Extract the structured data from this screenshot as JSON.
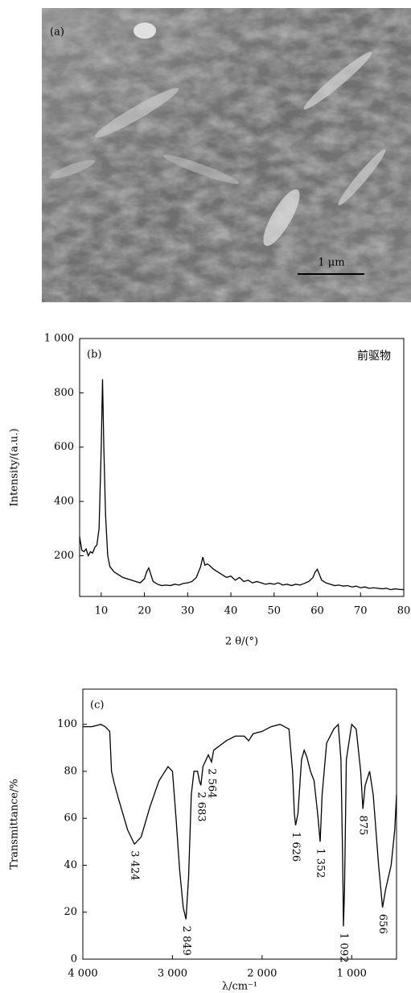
{
  "panel_a": {
    "label": "(a)",
    "scale_bar": "1 μm"
  },
  "chart_data": [
    {
      "type": "line",
      "panel_label": "(b)",
      "annotation_text": "前驱物",
      "xlabel": "2 θ/(°)",
      "ylabel": "Intensity/(a.u.)",
      "xlim": [
        5,
        80
      ],
      "ylim": [
        50,
        1000
      ],
      "xticks": [
        10,
        20,
        30,
        40,
        50,
        60,
        70,
        80
      ],
      "yticks": [
        200,
        400,
        600,
        800,
        {
          "value": 1000,
          "label": "1 000"
        }
      ],
      "color": "#000000",
      "x": [
        5,
        5.5,
        6,
        6.5,
        7,
        7.5,
        8,
        8.5,
        9,
        9.5,
        10,
        10.3,
        10.6,
        11,
        11.5,
        12,
        12.5,
        13,
        14,
        15,
        16,
        17,
        18,
        19,
        20,
        20.5,
        21,
        21.5,
        22,
        23,
        24,
        25,
        26,
        27,
        28,
        29,
        30,
        31,
        32,
        33,
        33.5,
        34,
        34.5,
        35,
        36,
        37,
        38,
        39,
        40,
        41,
        42,
        43,
        44,
        45,
        46,
        47,
        48,
        49,
        50,
        51,
        52,
        53,
        54,
        55,
        56,
        57,
        58,
        59,
        59.5,
        60,
        60.5,
        61,
        62,
        63,
        64,
        65,
        66,
        67,
        68,
        69,
        70,
        71,
        72,
        73,
        74,
        75,
        76,
        77,
        78,
        79,
        80
      ],
      "values": [
        270,
        220,
        215,
        225,
        200,
        215,
        210,
        230,
        240,
        300,
        600,
        850,
        600,
        350,
        200,
        160,
        150,
        140,
        130,
        120,
        115,
        110,
        105,
        100,
        115,
        140,
        155,
        130,
        105,
        95,
        90,
        92,
        90,
        95,
        92,
        98,
        100,
        105,
        120,
        160,
        195,
        165,
        170,
        165,
        150,
        140,
        130,
        120,
        125,
        110,
        120,
        105,
        110,
        100,
        105,
        100,
        95,
        98,
        95,
        100,
        92,
        95,
        90,
        95,
        92,
        98,
        105,
        120,
        140,
        150,
        130,
        110,
        100,
        95,
        90,
        92,
        88,
        90,
        85,
        88,
        82,
        85,
        80,
        82,
        80,
        78,
        80,
        75,
        78,
        76,
        75
      ]
    },
    {
      "type": "line",
      "panel_label": "(c)",
      "xlabel": "λ/cm⁻¹",
      "ylabel": "Transmittance/%",
      "xlim": [
        4000,
        500
      ],
      "ylim": [
        0,
        115
      ],
      "xticks": [
        {
          "value": 4000,
          "label": "4 000"
        },
        {
          "value": 3000,
          "label": "3 000"
        },
        {
          "value": 2000,
          "label": "2 000"
        },
        {
          "value": 1000,
          "label": "1 000"
        }
      ],
      "yticks": [
        0,
        20,
        40,
        60,
        80,
        100
      ],
      "color": "#000000",
      "x": [
        4000,
        3900,
        3800,
        3750,
        3700,
        3680,
        3650,
        3600,
        3500,
        3424,
        3350,
        3250,
        3150,
        3050,
        3000,
        2960,
        2920,
        2880,
        2849,
        2820,
        2790,
        2760,
        2720,
        2700,
        2683,
        2660,
        2600,
        2564,
        2540,
        2400,
        2300,
        2200,
        2150,
        2100,
        2000,
        1900,
        1800,
        1700,
        1660,
        1640,
        1626,
        1600,
        1560,
        1530,
        1500,
        1460,
        1420,
        1380,
        1352,
        1330,
        1280,
        1200,
        1150,
        1120,
        1100,
        1092,
        1080,
        1060,
        1000,
        950,
        900,
        875,
        850,
        800,
        760,
        700,
        656,
        620,
        560,
        520,
        500
      ],
      "values": [
        99,
        99,
        100,
        99,
        97,
        80,
        75,
        68,
        55,
        49,
        52,
        65,
        76,
        82,
        80,
        60,
        38,
        22,
        17,
        35,
        70,
        80,
        80,
        76,
        74,
        82,
        87,
        84,
        89,
        93,
        95,
        95,
        93,
        96,
        97,
        99,
        100,
        98,
        80,
        62,
        57,
        62,
        85,
        89,
        86,
        80,
        76,
        62,
        50,
        70,
        92,
        98,
        100,
        85,
        40,
        14,
        30,
        85,
        100,
        98,
        80,
        64,
        74,
        80,
        70,
        40,
        22,
        30,
        40,
        55,
        70
      ],
      "annotations": [
        {
          "value": 3424,
          "label": "3 424"
        },
        {
          "value": 2849,
          "label": "2 849"
        },
        {
          "value": 2683,
          "label": "2 683"
        },
        {
          "value": 2564,
          "label": "2 564"
        },
        {
          "value": 1626,
          "label": "1 626"
        },
        {
          "value": 1352,
          "label": "1 352"
        },
        {
          "value": 1092,
          "label": "1 092"
        },
        875,
        656
      ]
    }
  ]
}
